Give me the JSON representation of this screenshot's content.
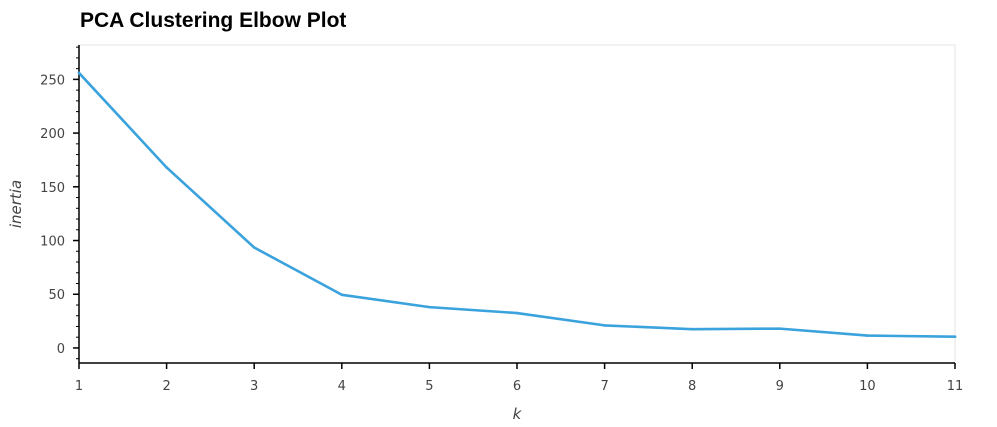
{
  "chart_data": {
    "type": "line",
    "title": "PCA Clustering Elbow Plot",
    "xlabel": "k",
    "ylabel": "inertia",
    "x": [
      1,
      2,
      3,
      4,
      5,
      6,
      7,
      8,
      9,
      10,
      11
    ],
    "xticks": [
      1,
      2,
      3,
      4,
      5,
      6,
      7,
      8,
      9,
      10,
      11
    ],
    "yticks": [
      0,
      50,
      100,
      150,
      200,
      250
    ],
    "xlim": [
      1,
      11
    ],
    "ylim": [
      -14,
      282
    ],
    "series": [
      {
        "values": [
          256,
          168,
          93.5,
          49.5,
          38,
          32.5,
          21,
          17.5,
          18,
          11.5,
          10.5
        ],
        "color": "#3aa2dc"
      }
    ],
    "grid": false,
    "legend": "none",
    "frame_color": "#e5e5e5",
    "axis_color": "#000000"
  }
}
